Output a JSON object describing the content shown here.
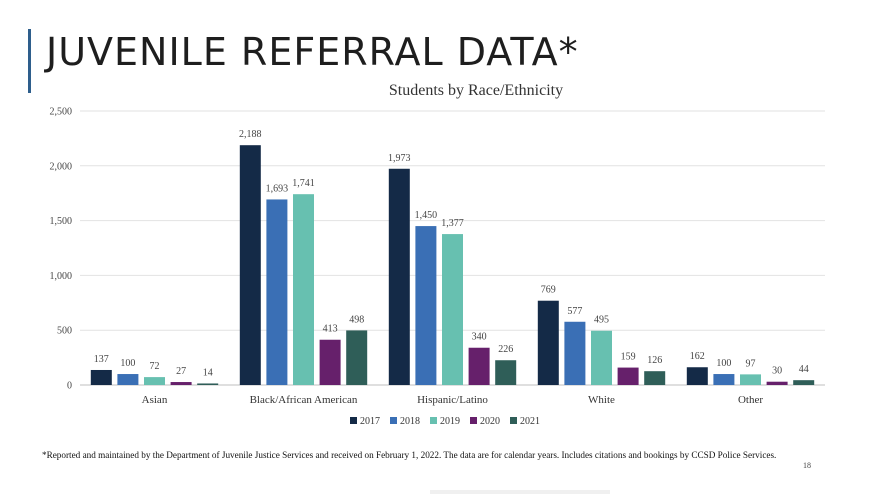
{
  "slide": {
    "title": "JUVENILE REFERRAL DATA*",
    "footnote": "*Reported and maintained by the Department of Juvenile Justice Services and received on February 1, 2022. The data are for calendar years. Includes citations and bookings by CCSD Police Services.",
    "page_number": "18",
    "accent_color": "#2e5e8c"
  },
  "chart_data": {
    "type": "bar",
    "title": "Students by Race/Ethnicity",
    "xlabel": "",
    "ylabel": "",
    "ylim": [
      0,
      2500
    ],
    "yticks": [
      0,
      500,
      1000,
      1500,
      2000,
      2500
    ],
    "ytick_labels": [
      "0",
      "500",
      "1,000",
      "1,500",
      "2,000",
      "2,500"
    ],
    "grid": true,
    "legend_position": "bottom-center",
    "categories": [
      "Asian",
      "Black/African American",
      "Hispanic/Latino",
      "White",
      "Other"
    ],
    "series": [
      {
        "name": "2017",
        "color": "#142a47",
        "values": [
          137,
          2188,
          1973,
          769,
          162
        ],
        "labels": [
          "137",
          "2,188",
          "1,973",
          "769",
          "162"
        ]
      },
      {
        "name": "2018",
        "color": "#3a6fb5",
        "values": [
          100,
          1693,
          1450,
          577,
          100
        ],
        "labels": [
          "100",
          "1,693",
          "1,450",
          "577",
          "100"
        ]
      },
      {
        "name": "2019",
        "color": "#67c0b0",
        "values": [
          72,
          1741,
          1377,
          495,
          97
        ],
        "labels": [
          "72",
          "1,741",
          "1,377",
          "495",
          "97"
        ]
      },
      {
        "name": "2020",
        "color": "#66206b",
        "values": [
          27,
          413,
          340,
          159,
          30
        ],
        "labels": [
          "27",
          "413",
          "340",
          "159",
          "30"
        ]
      },
      {
        "name": "2021",
        "color": "#2f5e58",
        "values": [
          14,
          498,
          226,
          126,
          44
        ],
        "labels": [
          "14",
          "498",
          "226",
          "126",
          "44"
        ]
      }
    ]
  }
}
